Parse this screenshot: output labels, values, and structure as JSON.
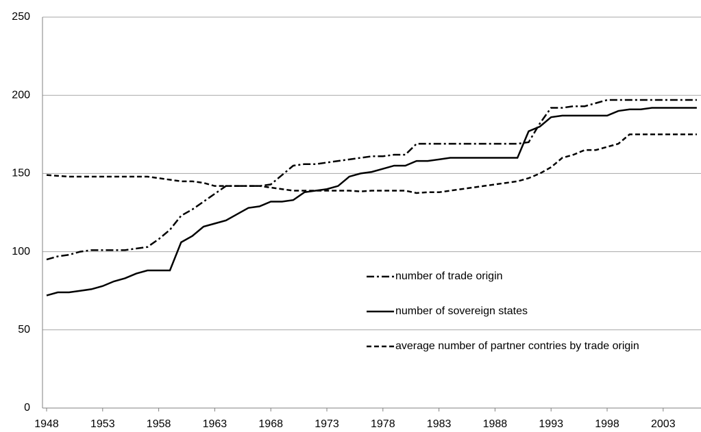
{
  "chart_data": {
    "type": "line",
    "categories": [
      "1948",
      null,
      null,
      null,
      null,
      "1953",
      null,
      null,
      null,
      null,
      "1958",
      null,
      null,
      null,
      null,
      "1963",
      null,
      null,
      null,
      null,
      "1968",
      null,
      null,
      null,
      null,
      "1973",
      null,
      null,
      null,
      null,
      "1978",
      null,
      null,
      null,
      null,
      "1983",
      null,
      null,
      null,
      null,
      "1988",
      null,
      null,
      null,
      null,
      "1993",
      null,
      null,
      null,
      null,
      "1998",
      null,
      null,
      null,
      null,
      "2003",
      null,
      null,
      null
    ],
    "series": [
      {
        "name": "number of trade origin",
        "color": "#000000",
        "dash": "dashdot",
        "values": [
          95,
          97,
          98,
          100,
          101,
          101,
          101,
          101,
          102,
          103,
          108,
          114,
          123,
          127,
          132,
          137,
          142,
          142,
          142,
          142,
          143,
          149,
          155,
          156,
          156,
          157,
          158,
          159,
          160,
          161,
          161,
          162,
          162,
          169,
          169,
          169,
          169,
          169,
          169,
          169,
          169,
          169,
          169,
          170,
          182,
          192,
          192,
          193,
          193,
          195,
          197,
          197,
          197,
          197,
          197,
          197,
          197,
          197,
          197
        ]
      },
      {
        "name": "number of sovereign states",
        "color": "#000000",
        "dash": "solid",
        "values": [
          72,
          74,
          74,
          75,
          76,
          78,
          81,
          83,
          86,
          88,
          88,
          88,
          106,
          110,
          116,
          118,
          120,
          124,
          128,
          129,
          132,
          132,
          133,
          138,
          139,
          140,
          142,
          148,
          150,
          151,
          153,
          155,
          155,
          158,
          158,
          159,
          160,
          160,
          160,
          160,
          160,
          160,
          160,
          177,
          180,
          186,
          187,
          187,
          187,
          187,
          187,
          190,
          191,
          191,
          192,
          192,
          192,
          192,
          192
        ]
      },
      {
        "name": "average number of partner contries by trade origin",
        "color": "#000000",
        "dash": "dashed",
        "values": [
          149,
          148.5,
          148,
          148,
          148,
          148,
          148,
          148,
          148,
          148,
          147,
          146,
          145,
          145,
          144,
          142,
          142,
          142,
          142,
          142,
          141,
          140,
          139,
          139,
          139,
          139,
          139,
          139,
          138.5,
          139,
          139,
          139,
          139,
          137.5,
          138,
          138,
          139,
          140,
          141,
          142,
          143,
          144,
          145,
          147,
          150,
          154,
          160,
          162,
          165,
          165,
          167,
          169,
          175,
          175,
          175,
          175,
          175,
          175,
          175
        ]
      }
    ],
    "ylim": [
      0,
      250
    ],
    "yticks": [
      0,
      50,
      100,
      150,
      200,
      250
    ],
    "grid": true
  }
}
